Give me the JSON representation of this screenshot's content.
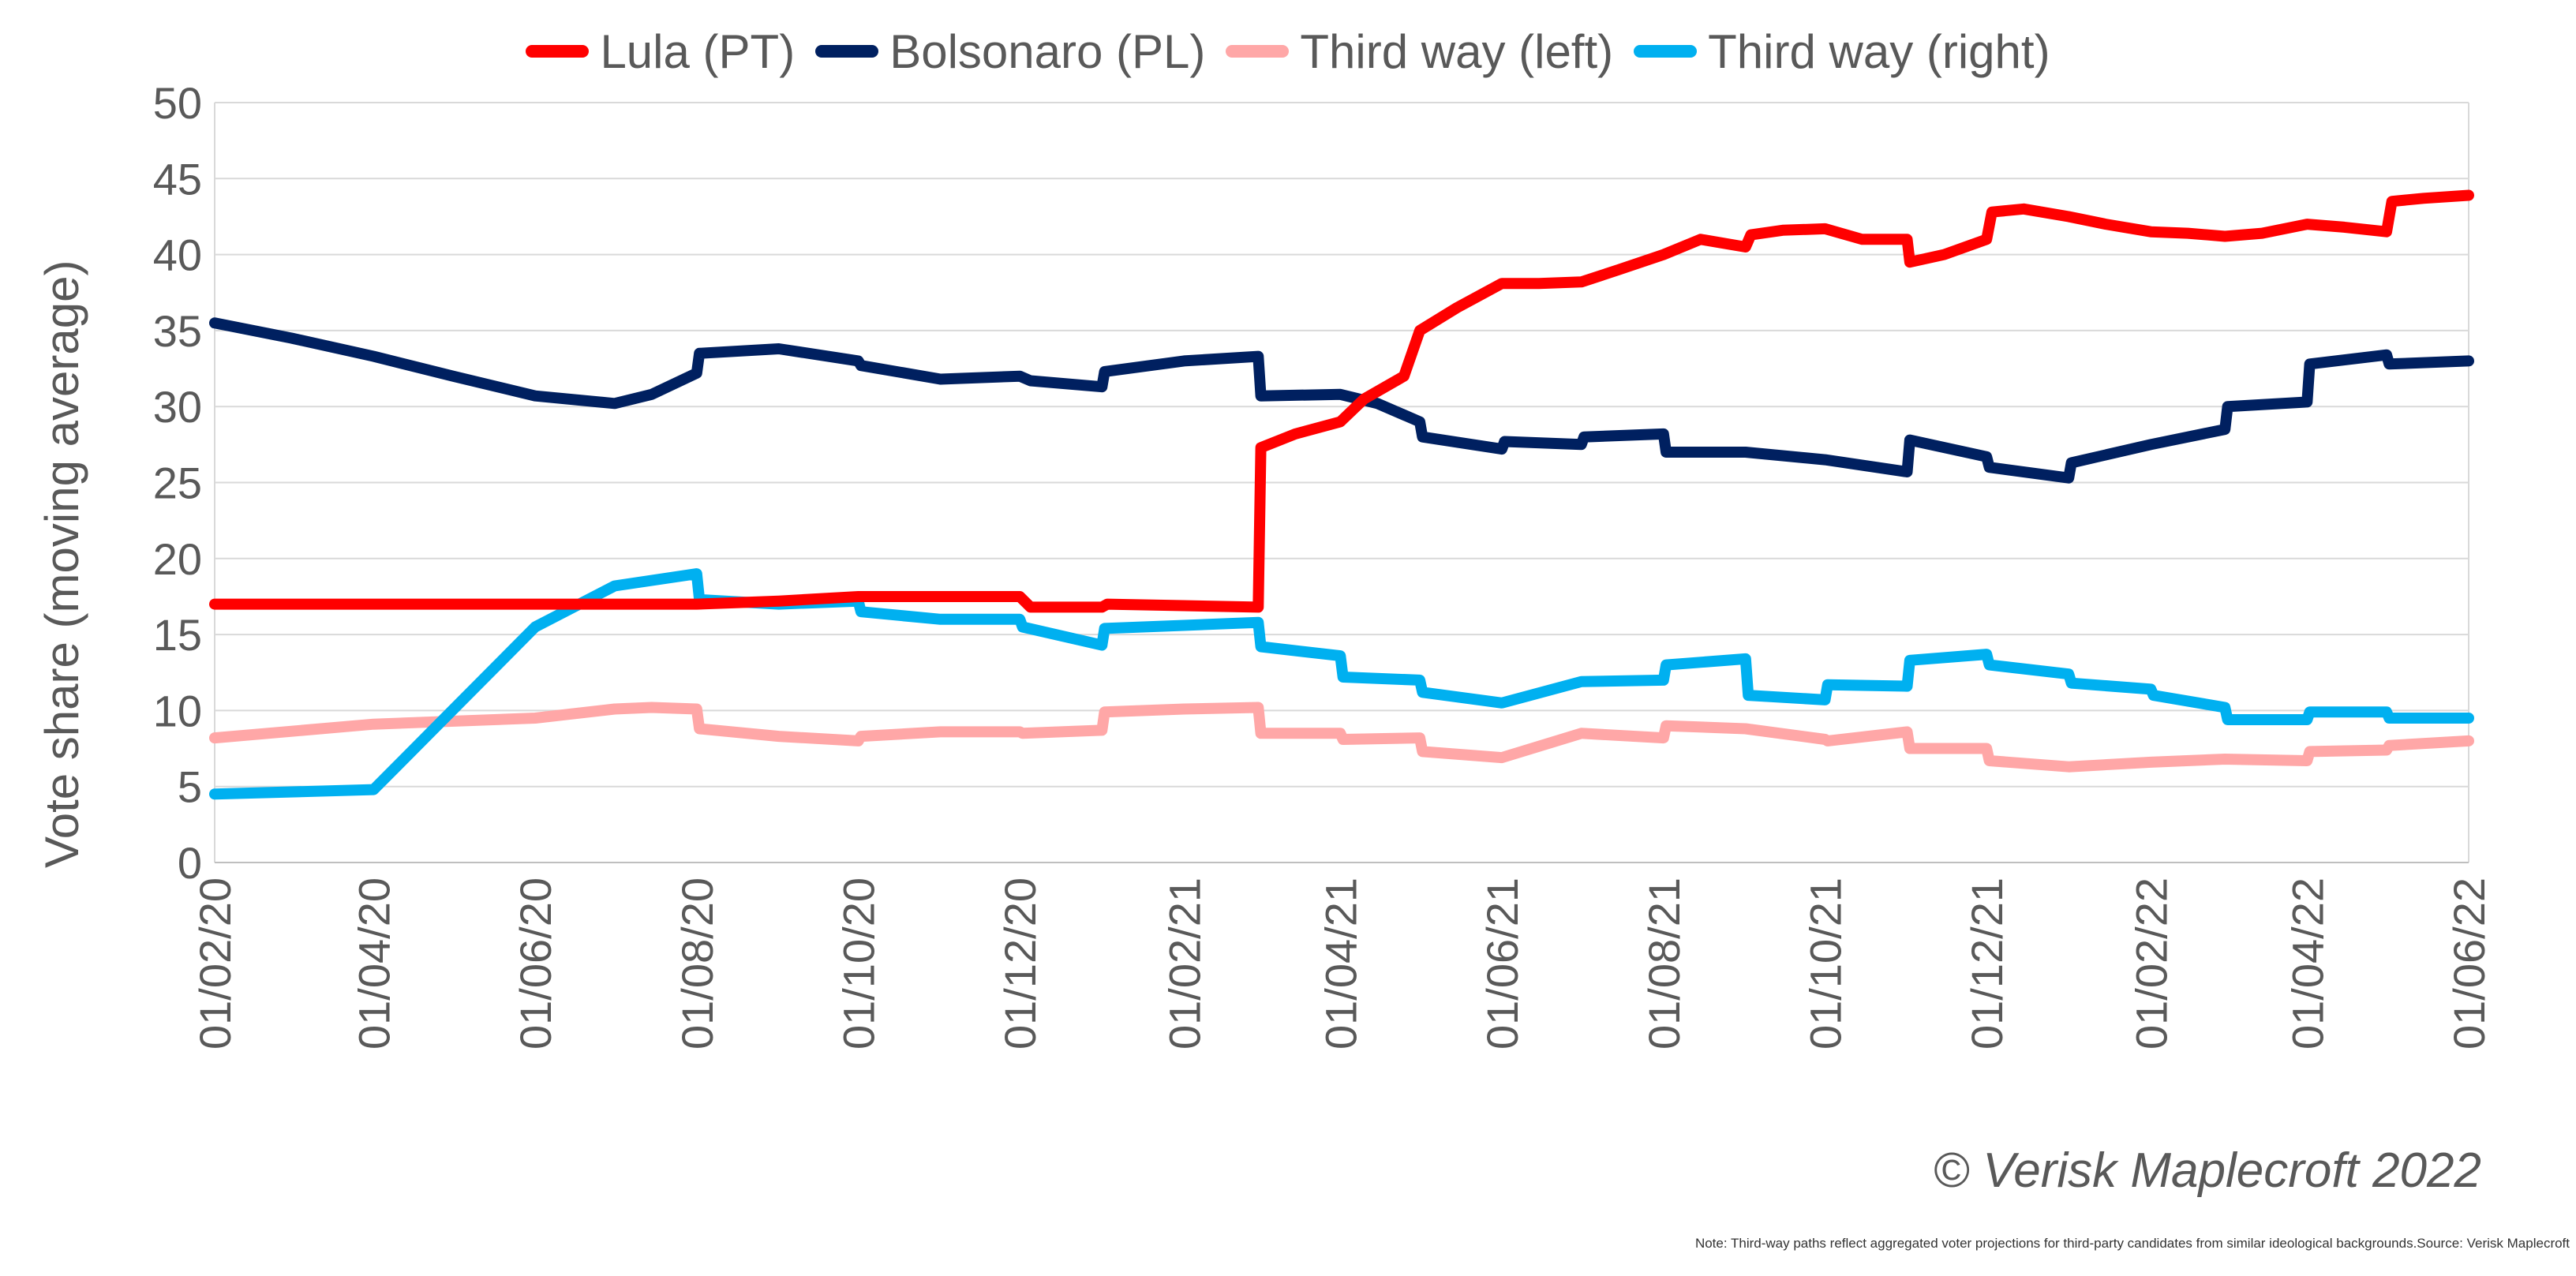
{
  "chart_data": {
    "type": "line",
    "ylabel": "Vote share (moving average)",
    "xlabel": "",
    "ylim": [
      0,
      50
    ],
    "yticks": [
      "0",
      "5",
      "10",
      "15",
      "20",
      "25",
      "30",
      "35",
      "40",
      "45",
      "50"
    ],
    "xticks": [
      "01/02/20",
      "01/04/20",
      "01/06/20",
      "01/08/20",
      "01/10/20",
      "01/12/20",
      "01/02/21",
      "01/04/21",
      "01/06/21",
      "01/08/21",
      "01/10/21",
      "01/12/21",
      "01/02/22",
      "01/04/22",
      "01/06/22"
    ],
    "grid": "horizontal",
    "legend_position": "top",
    "series": [
      {
        "name": "Lula (PT)",
        "color": "#ff0000",
        "x": [
          "2020-02-01",
          "2020-08-01",
          "2020-09-01",
          "2020-10-01",
          "2020-11-01",
          "2020-12-01",
          "2020-12-05",
          "2021-01-01",
          "2021-01-03",
          "2021-02-01",
          "2021-03-01",
          "2021-03-02",
          "2021-03-15",
          "2021-04-01",
          "2021-04-10",
          "2021-04-25",
          "2021-05-01",
          "2021-05-15",
          "2021-06-01",
          "2021-06-15",
          "2021-07-01",
          "2021-07-15",
          "2021-08-01",
          "2021-08-15",
          "2021-09-01",
          "2021-09-03",
          "2021-09-15",
          "2021-10-01",
          "2021-10-15",
          "2021-11-01",
          "2021-11-02",
          "2021-11-15",
          "2021-12-01",
          "2021-12-03",
          "2021-12-15",
          "2022-01-01",
          "2022-01-15",
          "2022-02-01",
          "2022-02-15",
          "2022-03-01",
          "2022-03-15",
          "2022-04-01",
          "2022-04-15",
          "2022-05-01",
          "2022-05-03",
          "2022-05-15",
          "2022-06-01"
        ],
        "y": [
          17.0,
          17.0,
          17.2,
          17.5,
          17.5,
          17.5,
          16.8,
          16.8,
          17.0,
          16.9,
          16.8,
          27.3,
          28.2,
          29.0,
          30.5,
          32.0,
          35.0,
          36.5,
          38.1,
          38.1,
          38.2,
          39.0,
          40.0,
          41.0,
          40.5,
          41.3,
          41.6,
          41.7,
          41.0,
          41.0,
          39.5,
          40.0,
          41.0,
          42.8,
          43.0,
          42.5,
          42.0,
          41.5,
          41.4,
          41.2,
          41.4,
          42.0,
          41.8,
          41.5,
          43.5,
          43.7,
          43.9
        ]
      },
      {
        "name": "Bolsonaro (PL)",
        "color": "#002060",
        "x": [
          "2020-02-01",
          "2020-03-01",
          "2020-04-01",
          "2020-05-01",
          "2020-06-01",
          "2020-07-01",
          "2020-07-15",
          "2020-08-01",
          "2020-08-02",
          "2020-09-01",
          "2020-10-01",
          "2020-10-02",
          "2020-11-01",
          "2020-12-01",
          "2020-12-05",
          "2021-01-01",
          "2021-01-02",
          "2021-02-01",
          "2021-03-01",
          "2021-03-02",
          "2021-04-01",
          "2021-04-15",
          "2021-05-01",
          "2021-05-02",
          "2021-06-01",
          "2021-06-02",
          "2021-07-01",
          "2021-07-02",
          "2021-08-01",
          "2021-08-02",
          "2021-09-01",
          "2021-10-01",
          "2021-11-01",
          "2021-11-02",
          "2021-12-01",
          "2021-12-02",
          "2022-01-01",
          "2022-01-02",
          "2022-02-01",
          "2022-03-01",
          "2022-03-02",
          "2022-04-01",
          "2022-04-02",
          "2022-05-01",
          "2022-05-02",
          "2022-06-01"
        ],
        "y": [
          35.5,
          34.5,
          33.3,
          32.0,
          30.7,
          30.2,
          30.8,
          32.2,
          33.5,
          33.8,
          33.0,
          32.7,
          31.8,
          32.0,
          31.7,
          31.3,
          32.3,
          33.0,
          33.3,
          30.7,
          30.8,
          30.2,
          29.0,
          28.0,
          27.2,
          27.7,
          27.5,
          28.0,
          28.2,
          27.0,
          27.0,
          26.5,
          25.7,
          27.8,
          26.7,
          26.0,
          25.3,
          26.3,
          27.5,
          28.5,
          30.0,
          30.3,
          32.8,
          33.4,
          32.8,
          33.0
        ]
      },
      {
        "name": "Third way (left)",
        "color": "#ffa7a7",
        "x": [
          "2020-02-01",
          "2020-04-01",
          "2020-06-01",
          "2020-07-01",
          "2020-07-15",
          "2020-08-01",
          "2020-08-02",
          "2020-09-01",
          "2020-10-01",
          "2020-10-02",
          "2020-11-01",
          "2020-12-01",
          "2020-12-02",
          "2021-01-01",
          "2021-01-02",
          "2021-02-01",
          "2021-03-01",
          "2021-03-02",
          "2021-04-01",
          "2021-04-02",
          "2021-05-01",
          "2021-05-02",
          "2021-06-01",
          "2021-07-01",
          "2021-08-01",
          "2021-08-02",
          "2021-09-01",
          "2021-10-01",
          "2021-10-02",
          "2021-11-01",
          "2021-11-02",
          "2021-12-01",
          "2021-12-02",
          "2022-01-01",
          "2022-02-01",
          "2022-03-01",
          "2022-04-01",
          "2022-04-02",
          "2022-05-01",
          "2022-05-02",
          "2022-06-01"
        ],
        "y": [
          8.2,
          9.1,
          9.5,
          10.1,
          10.2,
          10.1,
          8.8,
          8.3,
          8.0,
          8.3,
          8.6,
          8.6,
          8.5,
          8.7,
          9.9,
          10.1,
          10.2,
          8.5,
          8.5,
          8.1,
          8.2,
          7.3,
          6.9,
          8.5,
          8.2,
          9.0,
          8.8,
          8.1,
          8.0,
          8.6,
          7.5,
          7.5,
          6.7,
          6.3,
          6.6,
          6.8,
          6.7,
          7.3,
          7.4,
          7.7,
          8.0
        ]
      },
      {
        "name": "Third way (right)",
        "color": "#00b0f0",
        "x": [
          "2020-02-01",
          "2020-04-01",
          "2020-06-01",
          "2020-07-01",
          "2020-08-01",
          "2020-08-02",
          "2020-09-01",
          "2020-10-01",
          "2020-10-02",
          "2020-11-01",
          "2020-12-01",
          "2020-12-02",
          "2021-01-01",
          "2021-01-02",
          "2021-02-01",
          "2021-03-01",
          "2021-03-02",
          "2021-04-01",
          "2021-04-02",
          "2021-05-01",
          "2021-05-02",
          "2021-06-01",
          "2021-07-01",
          "2021-08-01",
          "2021-08-02",
          "2021-09-01",
          "2021-09-02",
          "2021-10-01",
          "2021-10-02",
          "2021-11-01",
          "2021-11-02",
          "2021-12-01",
          "2021-12-02",
          "2022-01-01",
          "2022-01-02",
          "2022-02-01",
          "2022-02-02",
          "2022-03-01",
          "2022-03-02",
          "2022-04-01",
          "2022-04-02",
          "2022-05-01",
          "2022-05-02",
          "2022-06-01"
        ],
        "y": [
          4.5,
          4.8,
          15.5,
          18.2,
          19.0,
          17.3,
          17.0,
          17.2,
          16.5,
          16.0,
          16.0,
          15.5,
          14.3,
          15.4,
          15.6,
          15.8,
          14.2,
          13.6,
          12.2,
          12.0,
          11.2,
          10.5,
          11.9,
          12.0,
          13.0,
          13.4,
          11.0,
          10.7,
          11.7,
          11.6,
          13.3,
          13.7,
          13.0,
          12.4,
          11.8,
          11.4,
          11.0,
          10.2,
          9.4,
          9.4,
          9.9,
          9.9,
          9.5,
          9.5
        ]
      }
    ]
  },
  "copyright": "© Verisk Maplecroft 2022",
  "note": "Note: Third-way paths reflect aggregated voter projections for third-party candidates from similar ideological backgrounds.Source: Verisk Maplecroft"
}
